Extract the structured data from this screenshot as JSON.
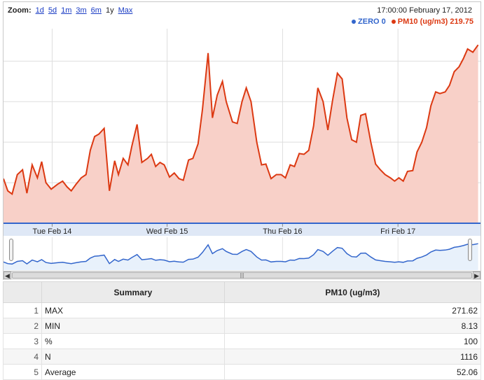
{
  "zoom": {
    "title": "Zoom:",
    "options": [
      {
        "label": "1d",
        "active": false
      },
      {
        "label": "5d",
        "active": false
      },
      {
        "label": "1m",
        "active": false
      },
      {
        "label": "3m",
        "active": false
      },
      {
        "label": "6m",
        "active": false
      },
      {
        "label": "1y",
        "active": true
      },
      {
        "label": "Max",
        "active": false
      }
    ]
  },
  "header": {
    "datetime": "17:00:00 February 17, 2012"
  },
  "legend": [
    {
      "text": "ZERO 0",
      "color": "#3366cc"
    },
    {
      "text": "PM10 (ug/m3) 219.75",
      "color": "#dc3912"
    }
  ],
  "chart_data": {
    "type": "area",
    "xlabel": "",
    "ylabel": "",
    "ylim": [
      0,
      240
    ],
    "y_ticks": [
      0,
      50,
      100,
      150,
      200
    ],
    "x_range": [
      0,
      100
    ],
    "x_ticks": [
      {
        "label": "Tue Feb 14",
        "x": 10.2
      },
      {
        "label": "Wed Feb 15",
        "x": 34.3
      },
      {
        "label": "Thu Feb 16",
        "x": 58.5
      },
      {
        "label": "Fri Feb 17",
        "x": 82.7
      }
    ],
    "series": [
      {
        "name": "PM10 (ug/m3)",
        "color": "#dc3912",
        "fill": "#f8d0c8",
        "points": [
          [
            0,
            55
          ],
          [
            0.9,
            40
          ],
          [
            1.8,
            36
          ],
          [
            2.9,
            60
          ],
          [
            4.0,
            66
          ],
          [
            4.9,
            37
          ],
          [
            6.0,
            72
          ],
          [
            7.1,
            56
          ],
          [
            8.0,
            76
          ],
          [
            8.9,
            50
          ],
          [
            10.0,
            42
          ],
          [
            11.3,
            48
          ],
          [
            12.4,
            52
          ],
          [
            13.3,
            45
          ],
          [
            14.2,
            40
          ],
          [
            15.2,
            48
          ],
          [
            16.3,
            56
          ],
          [
            17.3,
            60
          ],
          [
            18.2,
            90
          ],
          [
            19.1,
            107
          ],
          [
            20.0,
            110
          ],
          [
            21.1,
            117
          ],
          [
            22.2,
            40
          ],
          [
            23.3,
            77
          ],
          [
            24.1,
            60
          ],
          [
            25.1,
            80
          ],
          [
            26.1,
            72
          ],
          [
            26.9,
            95
          ],
          [
            28.0,
            122
          ],
          [
            29.0,
            75
          ],
          [
            30.2,
            80
          ],
          [
            31.0,
            85
          ],
          [
            31.9,
            70
          ],
          [
            32.8,
            75
          ],
          [
            33.7,
            72
          ],
          [
            34.8,
            57
          ],
          [
            35.8,
            62
          ],
          [
            36.8,
            55
          ],
          [
            37.7,
            53
          ],
          [
            38.8,
            78
          ],
          [
            39.7,
            80
          ],
          [
            40.8,
            98
          ],
          [
            41.7,
            140
          ],
          [
            42.9,
            210
          ],
          [
            43.8,
            130
          ],
          [
            44.8,
            158
          ],
          [
            45.9,
            175
          ],
          [
            46.7,
            150
          ],
          [
            48.0,
            125
          ],
          [
            49.0,
            123
          ],
          [
            50.0,
            150
          ],
          [
            50.9,
            167
          ],
          [
            51.9,
            150
          ],
          [
            53.1,
            100
          ],
          [
            54.1,
            72
          ],
          [
            55.0,
            73
          ],
          [
            56.1,
            55
          ],
          [
            57.2,
            60
          ],
          [
            58.2,
            60
          ],
          [
            59.1,
            56
          ],
          [
            60.1,
            72
          ],
          [
            61.0,
            70
          ],
          [
            62.0,
            86
          ],
          [
            63.0,
            85
          ],
          [
            64.0,
            90
          ],
          [
            65.0,
            120
          ],
          [
            65.9,
            167
          ],
          [
            67.0,
            150
          ],
          [
            68.0,
            115
          ],
          [
            69.0,
            152
          ],
          [
            70.0,
            185
          ],
          [
            71.0,
            178
          ],
          [
            72.0,
            130
          ],
          [
            73.0,
            103
          ],
          [
            74.0,
            100
          ],
          [
            74.9,
            133
          ],
          [
            75.9,
            135
          ],
          [
            77.0,
            100
          ],
          [
            78.0,
            73
          ],
          [
            79.0,
            66
          ],
          [
            80.0,
            60
          ],
          [
            81.1,
            56
          ],
          [
            82.0,
            52
          ],
          [
            82.9,
            56
          ],
          [
            83.8,
            52
          ],
          [
            84.7,
            64
          ],
          [
            85.8,
            65
          ],
          [
            86.7,
            88
          ],
          [
            87.7,
            100
          ],
          [
            88.7,
            118
          ],
          [
            89.6,
            145
          ],
          [
            90.6,
            162
          ],
          [
            91.5,
            160
          ],
          [
            92.6,
            162
          ],
          [
            93.5,
            170
          ],
          [
            94.5,
            187
          ],
          [
            95.5,
            193
          ],
          [
            96.4,
            203
          ],
          [
            97.3,
            215
          ],
          [
            98.4,
            211
          ],
          [
            99.5,
            220
          ]
        ]
      },
      {
        "name": "ZERO",
        "color": "#3366cc",
        "points": [
          [
            0,
            0
          ],
          [
            100,
            0
          ]
        ]
      }
    ]
  },
  "table": {
    "headers": [
      "Summary",
      "PM10 (ug/m3)"
    ],
    "rows": [
      {
        "index": "1",
        "label": "MAX",
        "value": "271.62"
      },
      {
        "index": "2",
        "label": "MIN",
        "value": "8.13"
      },
      {
        "index": "3",
        "label": "%",
        "value": "100"
      },
      {
        "index": "4",
        "label": "N",
        "value": "1116"
      },
      {
        "index": "5",
        "label": "Average",
        "value": "52.06"
      }
    ]
  }
}
